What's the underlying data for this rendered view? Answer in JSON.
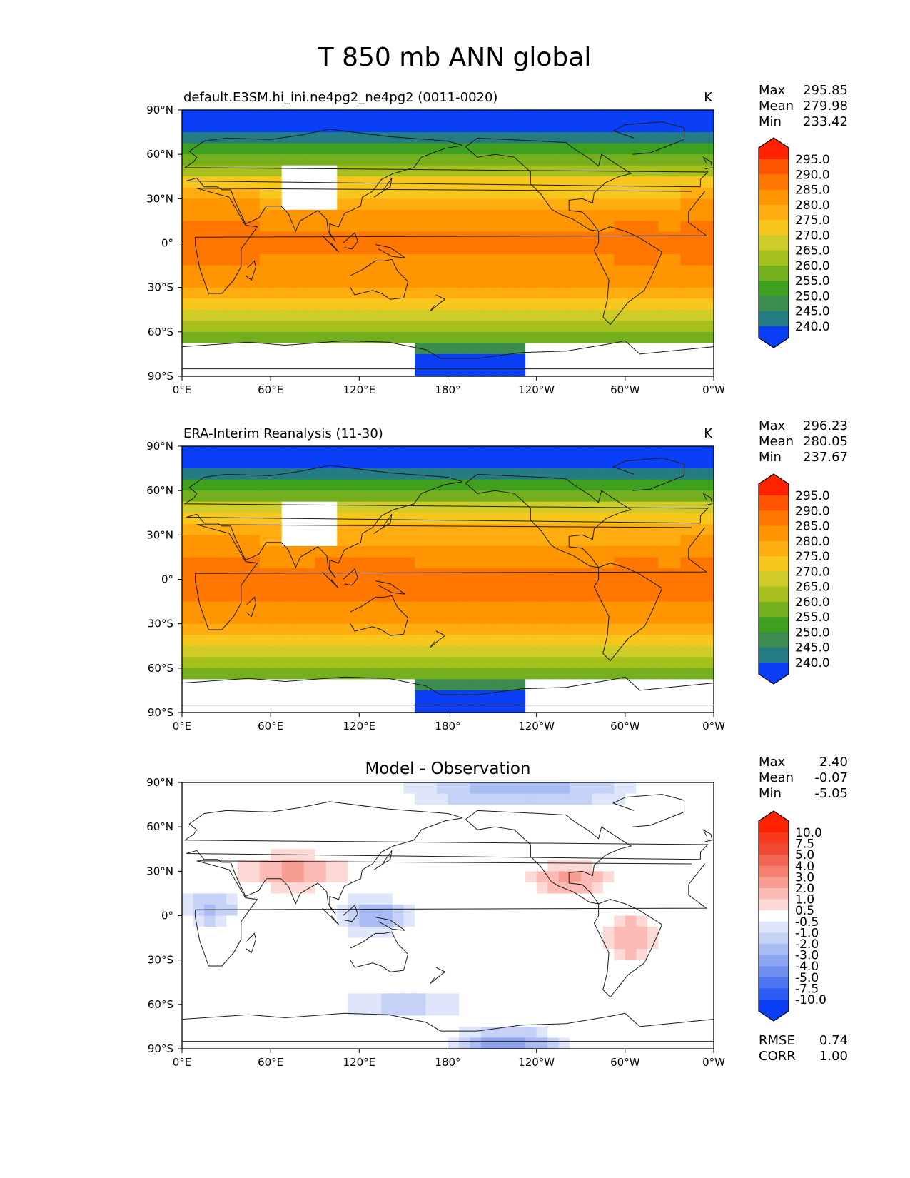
{
  "title": "T 850 mb ANN global",
  "chart_data": [
    {
      "type": "heatmap",
      "title": "default.E3SM.hi_ini.ne4pg2_ne4pg2 (0011-0020)",
      "units": "K",
      "stats": [
        {
          "label": "Max",
          "value": "295.85"
        },
        {
          "label": "Mean",
          "value": "279.98"
        },
        {
          "label": "Min",
          "value": "233.42"
        }
      ],
      "colorbar_ticks": [
        "295.0",
        "290.0",
        "285.0",
        "280.0",
        "275.0",
        "270.0",
        "265.0",
        "260.0",
        "255.0",
        "250.0",
        "245.0",
        "240.0"
      ],
      "xticks": [
        "0°E",
        "60°E",
        "120°E",
        "180°",
        "120°W",
        "60°W",
        "0°W"
      ],
      "yticks": [
        "90°N",
        "60°N",
        "30°N",
        "0°",
        "30°S",
        "60°S",
        "90°S"
      ],
      "xlim": [
        0,
        360
      ],
      "ylim": [
        -90,
        90
      ]
    },
    {
      "type": "heatmap",
      "title": "ERA-Interim Reanalysis (11-30)",
      "units": "K",
      "stats": [
        {
          "label": "Max",
          "value": "296.23"
        },
        {
          "label": "Mean",
          "value": "280.05"
        },
        {
          "label": "Min",
          "value": "237.67"
        }
      ],
      "colorbar_ticks": [
        "295.0",
        "290.0",
        "285.0",
        "280.0",
        "275.0",
        "270.0",
        "265.0",
        "260.0",
        "255.0",
        "250.0",
        "245.0",
        "240.0"
      ],
      "xticks": [
        "0°E",
        "60°E",
        "120°E",
        "180°",
        "120°W",
        "60°W",
        "0°W"
      ],
      "yticks": [
        "90°N",
        "60°N",
        "30°N",
        "0°",
        "30°S",
        "60°S",
        "90°S"
      ],
      "xlim": [
        0,
        360
      ],
      "ylim": [
        -90,
        90
      ]
    },
    {
      "type": "heatmap",
      "title": "Model - Observation",
      "units": "",
      "stats": [
        {
          "label": "Max",
          "value": "2.40"
        },
        {
          "label": "Mean",
          "value": "-0.07"
        },
        {
          "label": "Min",
          "value": "-5.05"
        }
      ],
      "colorbar_ticks": [
        "10.0",
        "7.5",
        "5.0",
        "4.0",
        "3.0",
        "2.0",
        "1.0",
        "0.5",
        "-0.5",
        "-1.0",
        "-2.0",
        "-3.0",
        "-4.0",
        "-5.0",
        "-7.5",
        "-10.0"
      ],
      "xticks": [
        "0°E",
        "60°E",
        "120°E",
        "180°",
        "120°W",
        "60°W",
        "0°W"
      ],
      "yticks": [
        "90°N",
        "60°N",
        "30°N",
        "0°",
        "30°S",
        "60°S",
        "90°S"
      ],
      "xlim": [
        0,
        360
      ],
      "ylim": [
        -90,
        90
      ],
      "metrics": [
        {
          "label": "RMSE",
          "value": "0.74"
        },
        {
          "label": "CORR",
          "value": "1.00"
        }
      ]
    }
  ],
  "colors": {
    "temp_ramp": [
      "#ff2200",
      "#ff5500",
      "#ff7700",
      "#ff9500",
      "#ffad11",
      "#f8c71d",
      "#cfcb28",
      "#a8c01e",
      "#74b01e",
      "#3f9f1f",
      "#3b8c4e",
      "#257b82",
      "#1662bb",
      "#0a3ff6"
    ],
    "diff_ramp": [
      "#ff2200",
      "#f7391d",
      "#f24b35",
      "#f36553",
      "#f5806f",
      "#f89d91",
      "#fbbab4",
      "#fdd9d6",
      "#ffffff",
      "#dfe6fb",
      "#c5d1f7",
      "#a9bbf3",
      "#8ea5ef",
      "#708ef0",
      "#4f76f2",
      "#2c5cf4",
      "#0a3ff6"
    ]
  }
}
